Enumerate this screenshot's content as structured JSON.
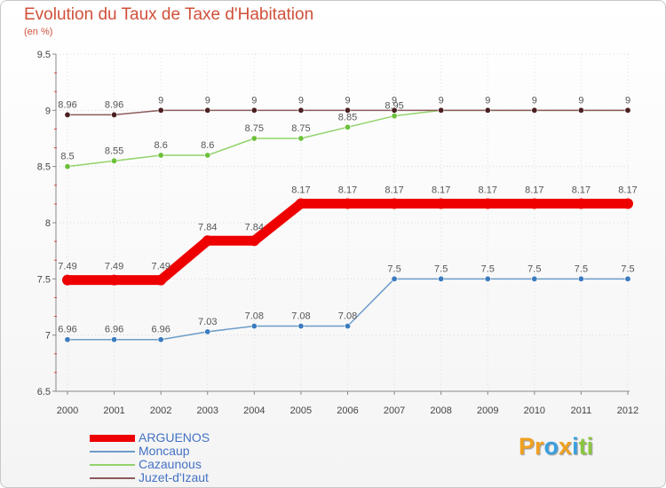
{
  "chart_data": {
    "type": "line",
    "title": "Evolution du Taux de Taxe d'Habitation",
    "subtitle": "(en %)",
    "xlabel": "",
    "ylabel": "(en %)",
    "ylim": [
      6.5,
      9.5
    ],
    "yticks": [
      "6.5",
      "7",
      "7.5",
      "8",
      "8.5",
      "9",
      "9.5"
    ],
    "categories": [
      "2000",
      "2001",
      "2002",
      "2003",
      "2004",
      "2005",
      "2006",
      "2007",
      "2008",
      "2009",
      "2010",
      "2011",
      "2012"
    ],
    "series": [
      {
        "name": "Moncaup",
        "color": "#6c9cc8",
        "marker": "#3b7bbf",
        "width": "thin",
        "values": [
          6.96,
          6.96,
          6.96,
          7.03,
          7.08,
          7.08,
          7.08,
          7.5,
          7.5,
          7.5,
          7.5,
          7.5,
          7.5
        ],
        "labels": [
          "6.96",
          "6.96",
          "6.96",
          "7.03",
          "7.08",
          "7.08",
          "7.08",
          "7.5",
          "7.5",
          "7.5",
          "7.5",
          "7.5",
          "7.5"
        ]
      },
      {
        "name": "Cazaunous",
        "color": "#92d36a",
        "marker": "#6cc03a",
        "width": "thin",
        "values": [
          8.5,
          8.55,
          8.6,
          8.6,
          8.75,
          8.75,
          8.85,
          8.95,
          9,
          9,
          9,
          9,
          9
        ],
        "labels": [
          "8.5",
          "8.55",
          "8.6",
          "8.6",
          "8.75",
          "8.75",
          "8.85",
          "8.95",
          "",
          "",
          "",
          "",
          ""
        ]
      },
      {
        "name": "Juzet-d'Izaut",
        "color": "#8b5a5a",
        "marker": "#4a2020",
        "width": "thin",
        "values": [
          8.96,
          8.96,
          9,
          9,
          9,
          9,
          9,
          9,
          9,
          9,
          9,
          9,
          9
        ],
        "labels": [
          "8.96",
          "8.96",
          "9",
          "9",
          "9",
          "9",
          "9",
          "9",
          "9",
          "9",
          "9",
          "9",
          "9"
        ]
      },
      {
        "name": "ARGUENOS",
        "color": "#ee0000",
        "marker": "#ee0000",
        "width": "thick",
        "values": [
          7.49,
          7.49,
          7.49,
          7.84,
          7.84,
          8.17,
          8.17,
          8.17,
          8.17,
          8.17,
          8.17,
          8.17,
          8.17
        ],
        "labels": [
          "7.49",
          "7.49",
          "7.49",
          "7.84",
          "7.84",
          "8.17",
          "8.17",
          "8.17",
          "8.17",
          "8.17",
          "8.17",
          "8.17",
          "8.17"
        ]
      }
    ],
    "legend": [
      "ARGUENOS",
      "Moncaup",
      "Cazaunous",
      "Juzet-d'Izaut"
    ],
    "legend_position": "bottom-left"
  },
  "logo": {
    "letters": [
      "P",
      "r",
      "o",
      "x",
      "i",
      "t",
      "i"
    ],
    "colors": [
      "#f0a020",
      "#f0a020",
      "#3aa0e0",
      "#f0a020",
      "#3aa0e0",
      "#8cc63f",
      "#8cc63f"
    ]
  }
}
